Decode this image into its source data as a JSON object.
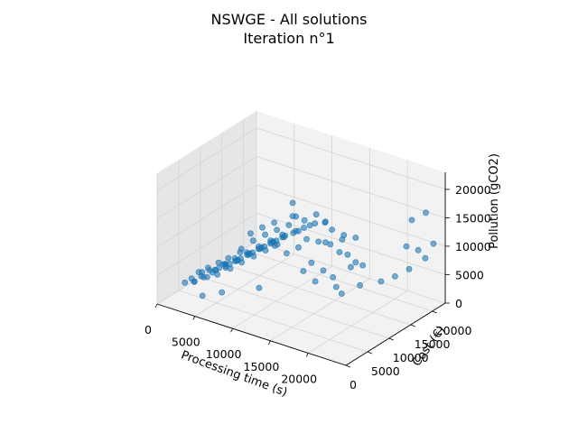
{
  "chart_data": {
    "type": "scatter",
    "projection": "3d",
    "title": "NSWGE - All solutions",
    "subtitle": "Iteration n°1",
    "xlabel": "Processing time (s)",
    "ylabel": "Cost (€)",
    "zlabel": "Pollution (gCO2)",
    "xlim": [
      0,
      25000
    ],
    "ylim": [
      0,
      23000
    ],
    "zlim": [
      0,
      23000
    ],
    "xticks": [
      0,
      5000,
      10000,
      15000,
      20000
    ],
    "yticks": [
      0,
      5000,
      10000,
      15000,
      20000
    ],
    "zticks": [
      0,
      5000,
      10000,
      15000,
      20000
    ],
    "grid": true,
    "colors": {
      "points": "#1f77b4",
      "pane_light": "#f2f2f2",
      "pane_dark": "#e6e6e6",
      "grid": "#d4d4d4"
    },
    "series": [
      {
        "points": [
          [
            2000,
            4500,
            3200
          ],
          [
            2500,
            4200,
            3000
          ],
          [
            3000,
            5000,
            3800
          ],
          [
            1500,
            3800,
            2600
          ],
          [
            2800,
            5500,
            4200
          ],
          [
            3500,
            6000,
            4600
          ],
          [
            4000,
            5800,
            4500
          ],
          [
            4500,
            6500,
            5200
          ],
          [
            5000,
            7000,
            5800
          ],
          [
            5500,
            7200,
            6000
          ],
          [
            6000,
            7600,
            6500
          ],
          [
            6500,
            8000,
            7000
          ],
          [
            7000,
            8600,
            7600
          ],
          [
            7500,
            9000,
            8000
          ],
          [
            8000,
            9500,
            8600
          ],
          [
            8500,
            10000,
            9000
          ],
          [
            9000,
            10500,
            9600
          ],
          [
            9500,
            11000,
            10000
          ],
          [
            10000,
            11500,
            10600
          ],
          [
            3200,
            5200,
            3600
          ],
          [
            4200,
            6200,
            4800
          ],
          [
            5200,
            6800,
            5400
          ],
          [
            6200,
            7800,
            6600
          ],
          [
            7200,
            8800,
            7800
          ],
          [
            8200,
            9800,
            8800
          ],
          [
            9200,
            10800,
            9800
          ],
          [
            10200,
            11800,
            10800
          ],
          [
            11000,
            12300,
            11400
          ],
          [
            11500,
            12600,
            11800
          ],
          [
            12000,
            13000,
            12400
          ],
          [
            4800,
            7400,
            5600
          ],
          [
            5800,
            8200,
            6200
          ],
          [
            6800,
            9200,
            7200
          ],
          [
            7800,
            10200,
            8200
          ],
          [
            8800,
            11200,
            9200
          ],
          [
            9800,
            12200,
            10200
          ],
          [
            10800,
            13200,
            11200
          ],
          [
            3800,
            6800,
            4400
          ],
          [
            4600,
            7800,
            5000
          ],
          [
            5600,
            8800,
            6000
          ],
          [
            6600,
            9800,
            7000
          ],
          [
            7600,
            10800,
            8000
          ],
          [
            8600,
            11800,
            9000
          ],
          [
            5300,
            6000,
            6400
          ],
          [
            6300,
            7000,
            7400
          ],
          [
            7300,
            8000,
            8400
          ],
          [
            8300,
            9000,
            9400
          ],
          [
            9300,
            10000,
            10400
          ],
          [
            10300,
            11000,
            11400
          ],
          [
            2200,
            4800,
            2600
          ],
          [
            3300,
            5800,
            3400
          ],
          [
            4300,
            6400,
            4000
          ],
          [
            5400,
            7500,
            5000
          ],
          [
            6400,
            8400,
            6100
          ],
          [
            7400,
            9400,
            7100
          ],
          [
            8400,
            10400,
            8100
          ],
          [
            9400,
            11400,
            9100
          ],
          [
            12500,
            13500,
            12800
          ],
          [
            13000,
            13800,
            13200
          ],
          [
            6000,
            9000,
            8000
          ],
          [
            7000,
            10000,
            9400
          ],
          [
            8000,
            11000,
            10400
          ],
          [
            9000,
            12000,
            11200
          ],
          [
            10000,
            13000,
            12000
          ],
          [
            6000,
            6000,
            7800
          ],
          [
            7000,
            7000,
            8800
          ],
          [
            5000,
            5500,
            6800
          ],
          [
            4000,
            4800,
            5800
          ],
          [
            3000,
            4400,
            4800
          ],
          [
            14000,
            14500,
            13600
          ],
          [
            13500,
            11000,
            12000
          ],
          [
            14500,
            12000,
            11500
          ],
          [
            15500,
            13000,
            11000
          ],
          [
            16000,
            11000,
            12500
          ],
          [
            17000,
            12500,
            10500
          ],
          [
            16500,
            14000,
            11800
          ],
          [
            17500,
            13500,
            9800
          ],
          [
            18500,
            12500,
            8500
          ],
          [
            18000,
            14500,
            8200
          ],
          [
            19500,
            13500,
            8800
          ],
          [
            14000,
            16000,
            11500
          ],
          [
            15000,
            17000,
            10500
          ],
          [
            16000,
            18000,
            10000
          ],
          [
            15000,
            9500,
            9200
          ],
          [
            16000,
            10500,
            7800
          ],
          [
            17000,
            11000,
            6800
          ],
          [
            18000,
            10000,
            6000
          ],
          [
            19000,
            9500,
            5500
          ],
          [
            20000,
            12000,
            6200
          ],
          [
            14500,
            8500,
            8000
          ],
          [
            15800,
            9000,
            6500
          ],
          [
            20500,
            16000,
            5200
          ],
          [
            21500,
            17500,
            5800
          ],
          [
            22500,
            19000,
            6800
          ],
          [
            23500,
            21000,
            8200
          ],
          [
            22000,
            20500,
            14500
          ],
          [
            23000,
            22000,
            15500
          ],
          [
            21000,
            21000,
            9200
          ],
          [
            22000,
            22000,
            8500
          ],
          [
            24000,
            22000,
            10500
          ],
          [
            12000,
            9000,
            9800
          ],
          [
            13000,
            10000,
            10800
          ],
          [
            11000,
            8000,
            11200
          ],
          [
            12500,
            15000,
            14000
          ],
          [
            11500,
            14000,
            13000
          ],
          [
            10500,
            13000,
            13800
          ],
          [
            11800,
            11500,
            15000
          ],
          [
            10800,
            12500,
            16500
          ],
          [
            12800,
            16500,
            12000
          ],
          [
            9500,
            7000,
            3600
          ],
          [
            4000,
            3500,
            1500
          ],
          [
            6000,
            4500,
            2500
          ],
          [
            8500,
            9500,
            12600
          ],
          [
            9500,
            10500,
            13400
          ],
          [
            7500,
            8500,
            11600
          ]
        ]
      }
    ]
  }
}
